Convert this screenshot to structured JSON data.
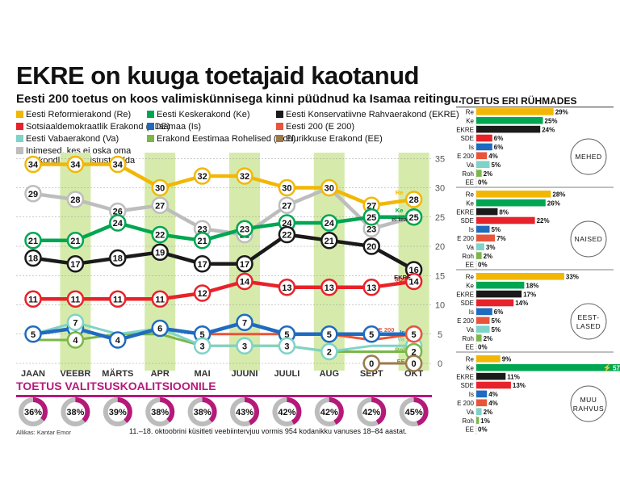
{
  "title": "EKRE on kuuga toetajaid kaotanud",
  "subtitle": "Eesti 200 toetus on koos valimiskünnisega kinni püüdnud ka Isamaa reitingu.",
  "colors": {
    "Re": "#f2b705",
    "Ke": "#00a651",
    "EKRE": "#1a1a1a",
    "SDE": "#e8222a",
    "Is": "#1f6bbf",
    "E200": "#e8553a",
    "Va": "#7fd3c7",
    "Roh": "#7ab648",
    "EE": "#9c7a4b",
    "None": "#bdbdbd",
    "coalition": "#b5197a",
    "band": "#d6ebab"
  },
  "legend": [
    {
      "key": "Re",
      "label": "Eesti Reformierakond (Re)"
    },
    {
      "key": "Ke",
      "label": "Eesti Keskerakond (Ke)"
    },
    {
      "key": "EKRE",
      "label": "Eesti Konservatiivne Rahvaerakond (EKRE)"
    },
    {
      "key": "SDE",
      "label": "Sotsiaaldemokraatlik Erakond (SDE)"
    },
    {
      "key": "Is",
      "label": "Isamaa (Is)"
    },
    {
      "key": "E200",
      "label": "Eesti 200 (E 200)"
    },
    {
      "key": "Va",
      "label": "Eesti Vabaerakond (Va)"
    },
    {
      "key": "Roh",
      "label": "Erakond Eestimaa Rohelised (Roh)"
    },
    {
      "key": "EE",
      "label": "Elurikkuse Erakond (EE)"
    },
    {
      "key": "None",
      "label": "Inimesed, kes ei oska oma erakondlikku eelistust öelda"
    }
  ],
  "chart_data": [
    {
      "type": "line",
      "title": "EKRE on kuuga toetajaid kaotanud",
      "x": [
        "JAAN",
        "VEEBR",
        "MÄRTS",
        "APR",
        "MAI",
        "JUUNI",
        "JUULI",
        "AUG",
        "SEPT",
        "OKT"
      ],
      "ylim": [
        0,
        35
      ],
      "yticks": [
        0,
        5,
        10,
        15,
        20,
        25,
        30,
        35
      ],
      "series": [
        {
          "key": "None",
          "name": "Inimesed, kes ei oska oma erakondlikku eelistust öelda",
          "values": [
            29,
            28,
            26,
            27,
            23,
            22,
            27,
            30,
            23,
            25
          ],
          "bubbles": true
        },
        {
          "key": "Re",
          "name": "Eesti Reformierakond (Re)",
          "values": [
            34,
            34,
            34,
            30,
            32,
            32,
            30,
            30,
            27,
            28
          ],
          "bubbles": true
        },
        {
          "key": "Ke",
          "name": "Eesti Keskerakond (Ke)",
          "values": [
            21,
            21,
            24,
            22,
            21,
            23,
            24,
            24,
            25,
            25
          ],
          "bubbles": true
        },
        {
          "key": "EKRE",
          "name": "Eesti Konservatiivne Rahvaerakond (EKRE)",
          "values": [
            18,
            17,
            18,
            19,
            17,
            17,
            22,
            21,
            20,
            16
          ],
          "bubbles": true
        },
        {
          "key": "SDE",
          "name": "Sotsiaaldemokraatlik Erakond (SDE)",
          "values": [
            11,
            11,
            11,
            11,
            12,
            14,
            13,
            13,
            13,
            14
          ],
          "bubbles": true
        },
        {
          "key": "Roh",
          "name": "Erakond Eestimaa Rohelised (Roh)",
          "values": [
            4,
            4,
            5,
            5,
            3,
            3,
            3,
            2,
            2,
            2
          ],
          "bubbles": false
        },
        {
          "key": "Va",
          "name": "Eesti Vabaerakond (Va)",
          "values": [
            5,
            7,
            5,
            6,
            3,
            3,
            3,
            2,
            3,
            3
          ],
          "bubbles": false
        },
        {
          "key": "E200",
          "name": "Eesti 200 (E 200)",
          "values": [
            null,
            null,
            null,
            null,
            5,
            5,
            5,
            5,
            4,
            5
          ],
          "bubbles": false
        },
        {
          "key": "Is",
          "name": "Isamaa (Is)",
          "values": [
            5,
            6,
            4,
            6,
            5,
            7,
            5,
            5,
            5,
            5
          ],
          "bubbles": true
        },
        {
          "key": "EE",
          "name": "Elurikkuse Erakond (EE)",
          "values": [
            null,
            null,
            null,
            null,
            null,
            null,
            null,
            null,
            0,
            0
          ],
          "bubbles": false
        }
      ],
      "extra_bubbles": [
        {
          "key": "Roh",
          "month": 1,
          "value": 4
        },
        {
          "key": "Va",
          "month": 1,
          "value": 7
        },
        {
          "key": "Va",
          "month": 5,
          "value": 3
        },
        {
          "key": "Va",
          "month": 6,
          "value": 3
        },
        {
          "key": "Va",
          "month": 7,
          "value": 2
        },
        {
          "key": "Va",
          "month": 9,
          "value": 3
        },
        {
          "key": "Roh",
          "month": 9,
          "value": 2
        },
        {
          "key": "E200",
          "month": 9,
          "value": 5
        },
        {
          "key": "EE",
          "month": 8,
          "value": 0
        },
        {
          "key": "EE",
          "month": 9,
          "value": 0
        },
        {
          "key": "Va",
          "month": 4,
          "value": 3
        }
      ],
      "annotations": [
        {
          "key": "Re",
          "text": "Re"
        },
        {
          "key": "Ke",
          "text": "Ke"
        },
        {
          "key": "EKRE",
          "text": "EKRE"
        },
        {
          "key": "SDE",
          "text": "SDE"
        },
        {
          "key": "None",
          "text": "ei tea"
        },
        {
          "key": "Is",
          "text": "Is"
        },
        {
          "key": "E200",
          "text": "E 200"
        },
        {
          "key": "Va",
          "text": "Va"
        },
        {
          "key": "Roh",
          "text": "Roh"
        },
        {
          "key": "EE",
          "text": "EE"
        }
      ]
    },
    {
      "type": "donut",
      "title": "TOETUS VALITSUSKOALITSIOONILE",
      "x": [
        "JAAN",
        "VEEBR",
        "MÄRTS",
        "APR",
        "MAI",
        "JUUNI",
        "JUULI",
        "AUG",
        "SEPT",
        "OKT"
      ],
      "values": [
        36,
        38,
        39,
        38,
        38,
        43,
        42,
        42,
        42,
        45
      ],
      "labels": [
        "36%",
        "38%",
        "39%",
        "38%",
        "38%",
        "43%",
        "42%",
        "42%",
        "42%",
        "45%"
      ]
    },
    {
      "type": "bar",
      "title": "TOETUS ERI RÜHMADES",
      "categories": [
        "Re",
        "Ke",
        "EKRE",
        "SDE",
        "Is",
        "E 200",
        "Va",
        "Roh",
        "EE"
      ],
      "keys": [
        "Re",
        "Ke",
        "EKRE",
        "SDE",
        "Is",
        "E200",
        "Va",
        "Roh",
        "EE"
      ],
      "xlim": [
        0,
        57
      ],
      "series": [
        {
          "name": "MEHED",
          "values": [
            29,
            25,
            24,
            6,
            6,
            4,
            5,
            2,
            0
          ],
          "labels": [
            "29%",
            "25%",
            "24%",
            "6%",
            "6%",
            "4%",
            "5%",
            "2%",
            "0%"
          ]
        },
        {
          "name": "NAISED",
          "values": [
            28,
            26,
            8,
            22,
            5,
            7,
            3,
            2,
            0
          ],
          "labels": [
            "28%",
            "26%",
            "8%",
            "22%",
            "5%",
            "7%",
            "3%",
            "2%",
            "0%"
          ]
        },
        {
          "name": "EEST-LASED",
          "values": [
            33,
            18,
            17,
            14,
            6,
            5,
            5,
            2,
            0
          ],
          "labels": [
            "33%",
            "18%",
            "17%",
            "14%",
            "6%",
            "5%",
            "5%",
            "2%",
            "0%"
          ]
        },
        {
          "name": "MUU RAHVUS",
          "values": [
            9,
            57,
            11,
            13,
            4,
            4,
            2,
            1,
            0
          ],
          "labels": [
            "9%",
            "57%",
            "11%",
            "13%",
            "4%",
            "4%",
            "2%",
            "1%",
            "0%"
          ]
        }
      ]
    }
  ],
  "source": "Allikas: Kantar Emor",
  "note": "11.–18. oktoobrini küsitleti veebiintervjuu vormis 954 kodanikku vanuses 18–84 aastat."
}
